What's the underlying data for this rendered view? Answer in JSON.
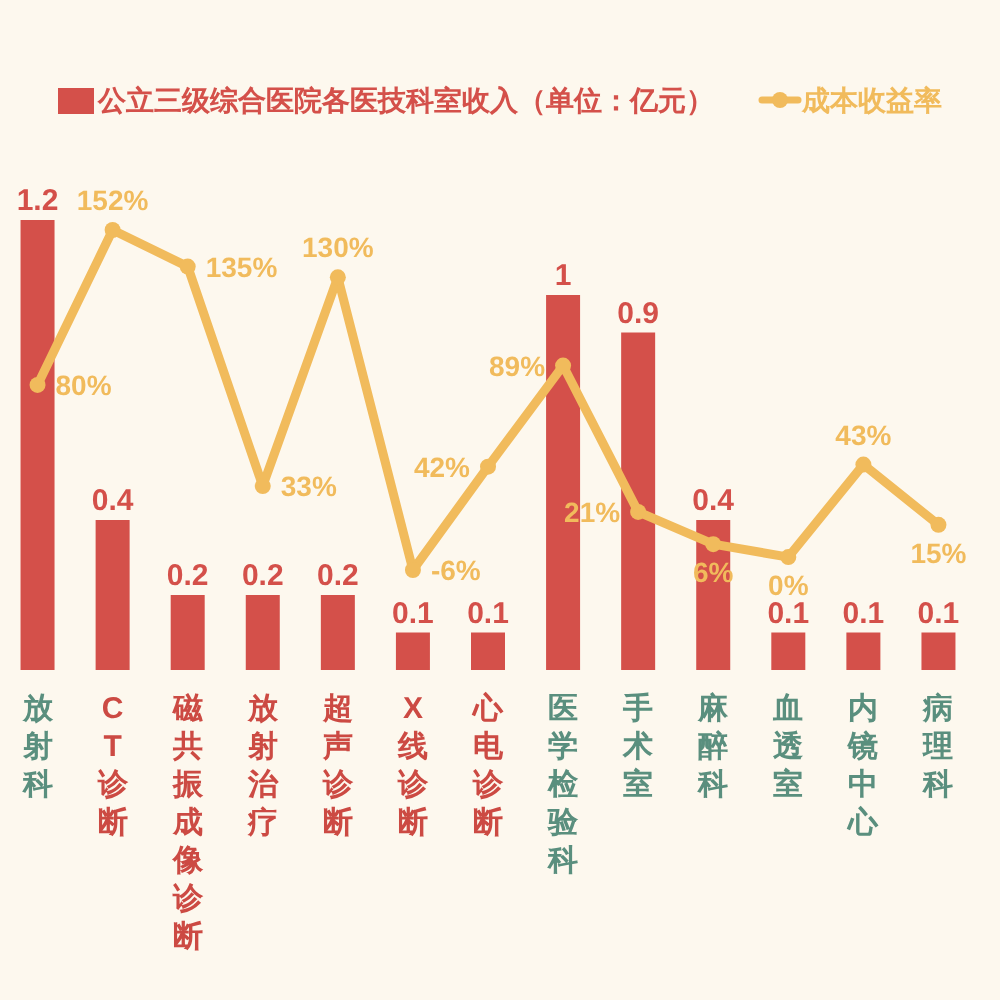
{
  "chart_data": {
    "type": "bar",
    "categories": [
      "放射科",
      "CT诊断",
      "磁共振成像诊断",
      "放射治疗",
      "超声诊断",
      "X线诊断",
      "心电诊断",
      "医学检验科",
      "手术室",
      "麻醉科",
      "血透室",
      "内镜中心",
      "病理科"
    ],
    "series": [
      {
        "name": "公立三级综合医院各医技科室收入（单位：亿元）",
        "color": "#d4504a",
        "values": [
          1.2,
          0.4,
          0.2,
          0.2,
          0.2,
          0.1,
          0.1,
          1,
          0.9,
          0.4,
          0.1,
          0.1,
          0.1
        ]
      },
      {
        "name": "成本收益率",
        "type": "line",
        "axis": "y2",
        "color": "#f1bb5c",
        "values": [
          80,
          152,
          135,
          33,
          130,
          -6,
          42,
          89,
          21,
          6,
          0,
          43,
          15
        ],
        "value_labels": [
          "80%",
          "152%",
          "135%",
          "33%",
          "130%",
          "-6%",
          "42%",
          "89%",
          "21%",
          "6%",
          "0%",
          "43%",
          "15%"
        ]
      }
    ],
    "data_labels": true,
    "legend": "top",
    "marker": "circle",
    "line_style": "solid",
    "tick_labels": "x"
  }
}
